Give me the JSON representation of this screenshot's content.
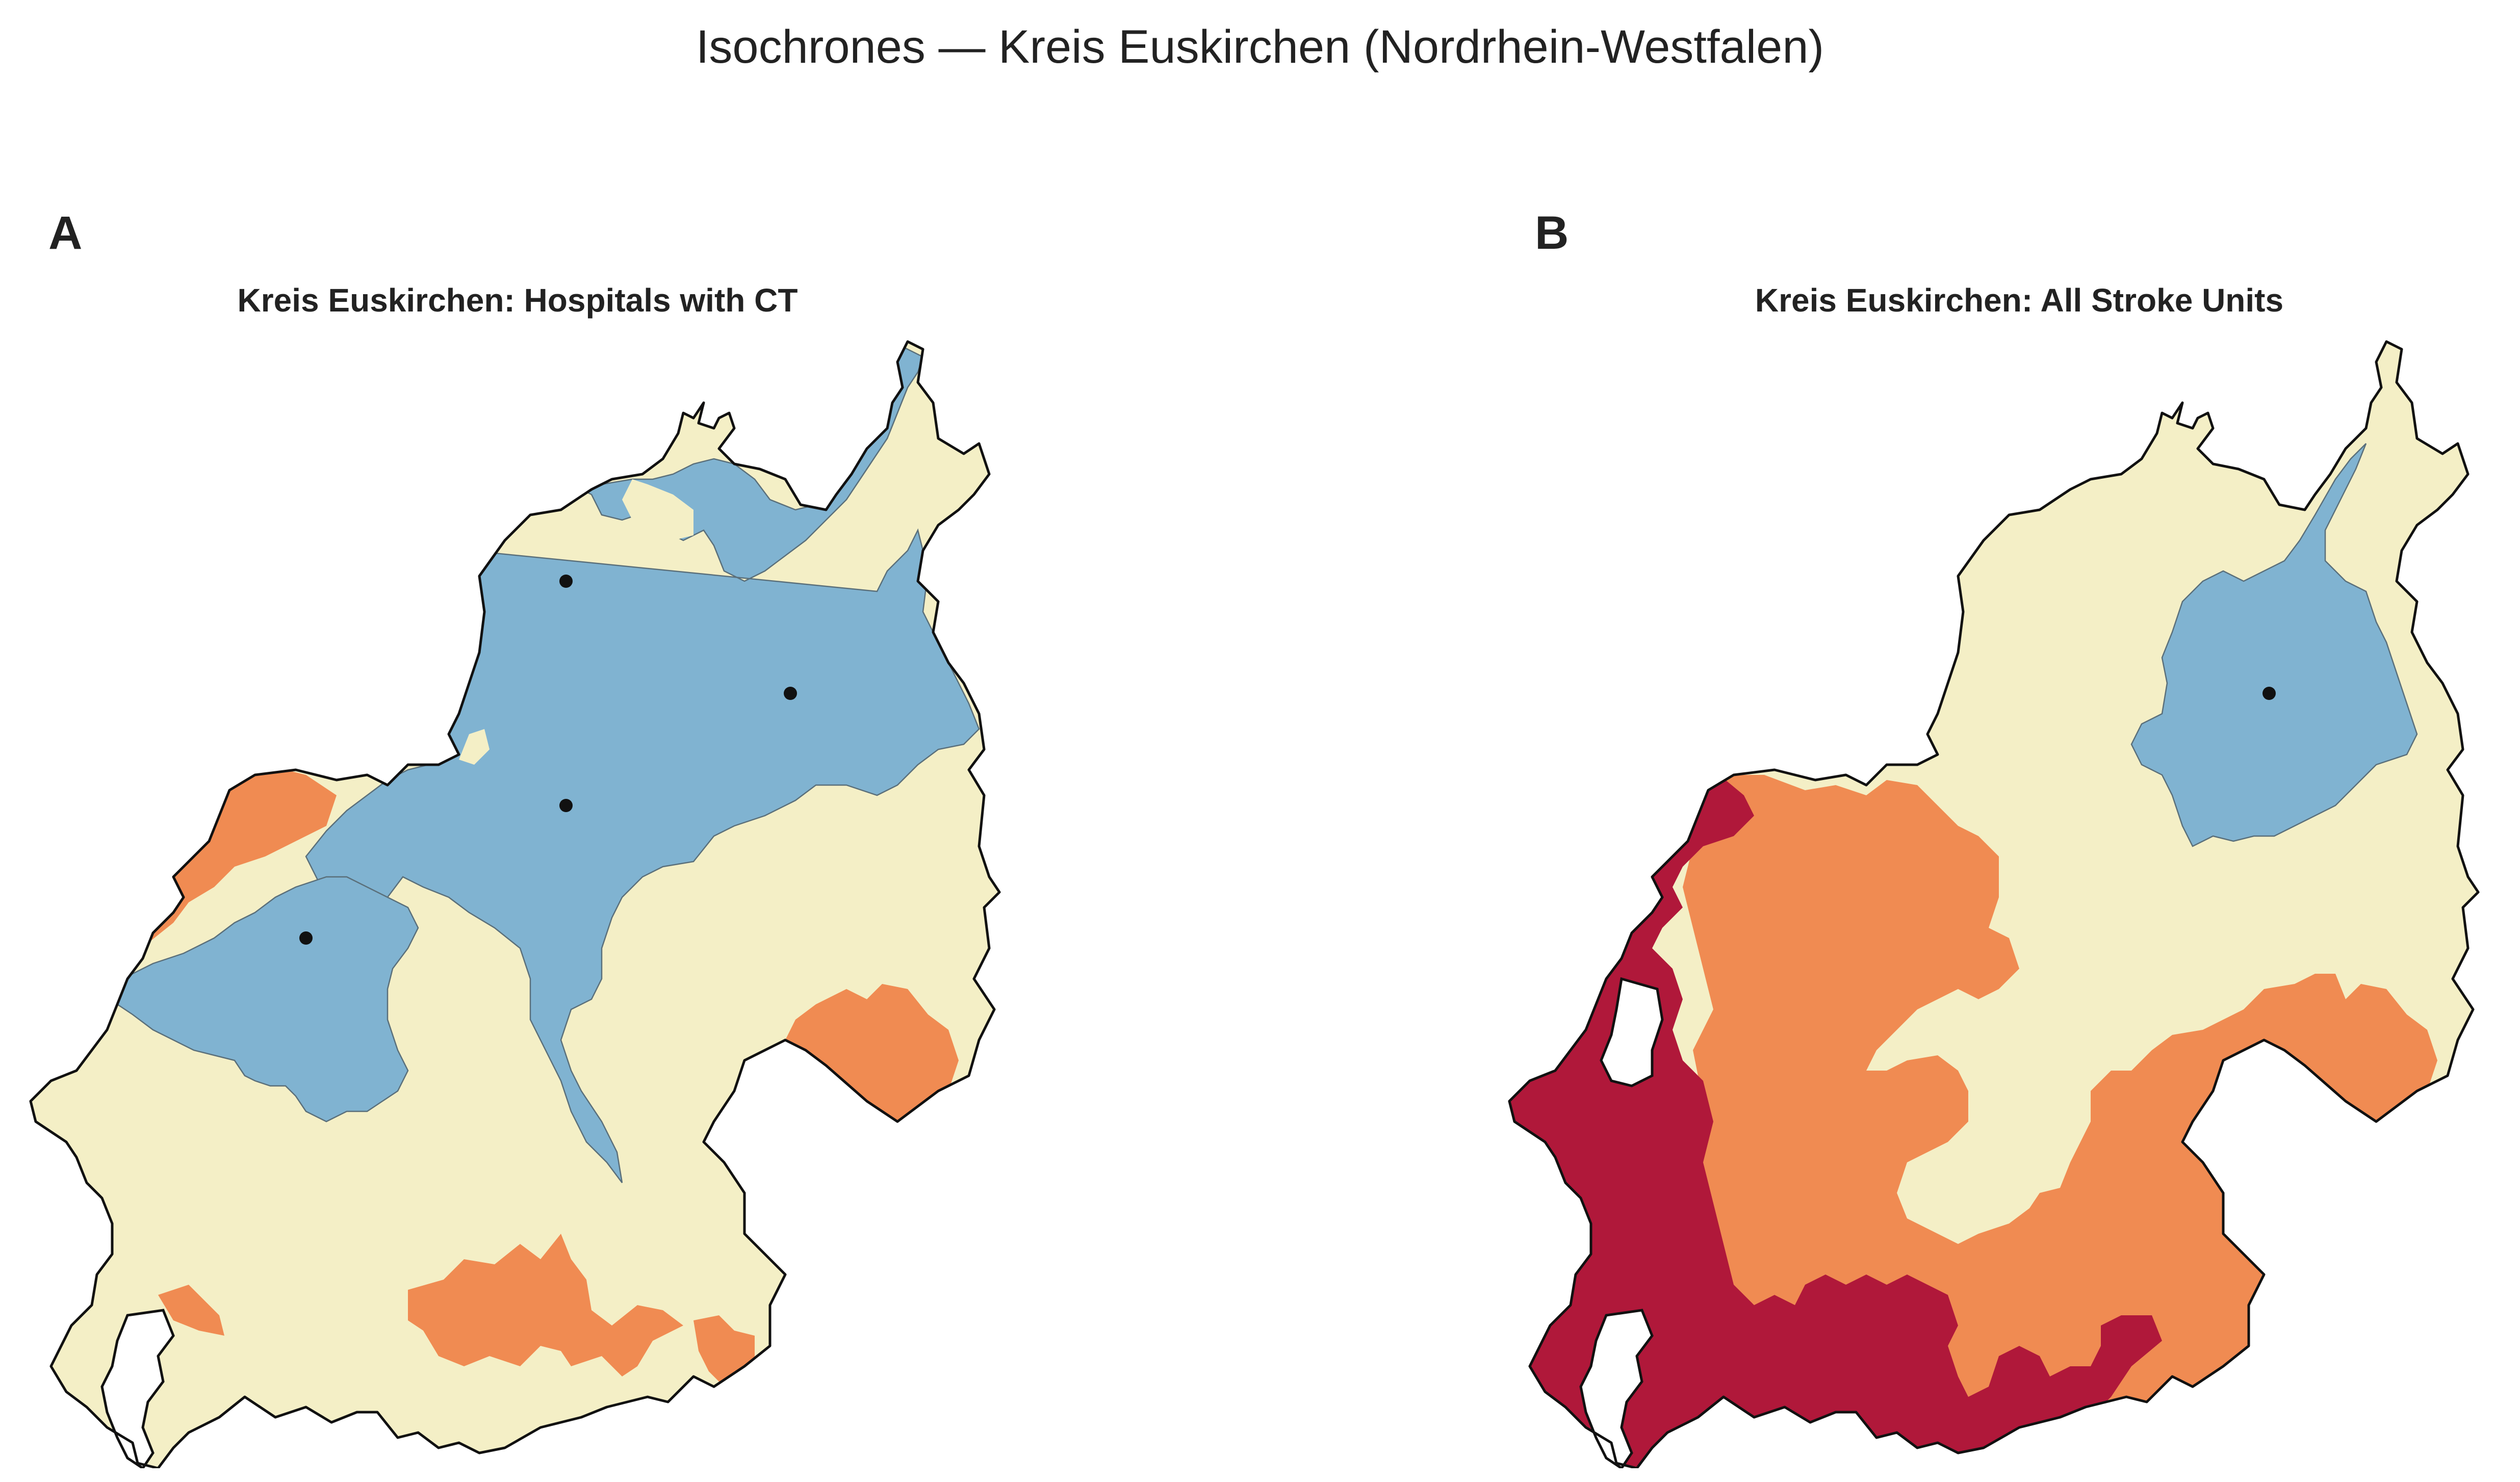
{
  "figure": {
    "title": "Isochrones — Kreis Euskirchen (Nordrhein-Westfalen)"
  },
  "colors": {
    "base": "#f4efc6",
    "blue": "#80b3d1",
    "orange": "#f08b52",
    "crimson": "#b0183a",
    "outline": "#111111",
    "point": "#111111"
  },
  "panels": [
    {
      "letter": "A",
      "title": "Kreis Euskirchen: Hospitals with CT",
      "facility_count": 4
    },
    {
      "letter": "B",
      "title": "Kreis Euskirchen: All Stroke Units",
      "facility_count": 1
    }
  ]
}
